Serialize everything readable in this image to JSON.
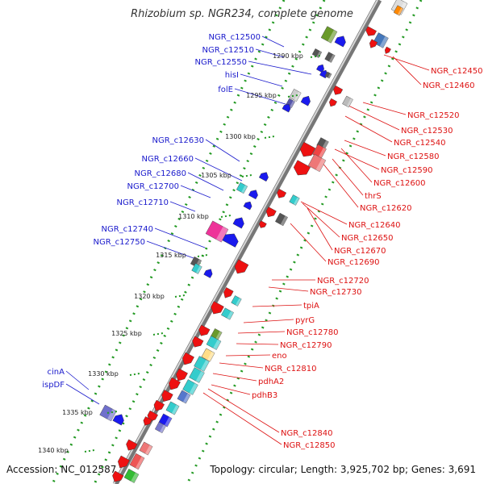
{
  "title": "Rhizobium sp. NGR234, complete genome",
  "accession": "Accession: NC_012587",
  "topology": "Topology: circular; Length: 3,925,702 bp; Genes: 3,691",
  "colors": {
    "label_forward": "#1a1acc",
    "label_reverse": "#dd1111",
    "gene_forward": "#1a1aee",
    "gene_reverse": "#ee1111",
    "axis": "#aaaaaa",
    "tick_dots": "#229922"
  },
  "kbp_ticks": [
    "1290 kbp",
    "1295 kbp",
    "1300 kbp",
    "1305 kbp",
    "1310 kbp",
    "1315 kbp",
    "1320 kbp",
    "1325 kbp",
    "1330 kbp",
    "1335 kbp",
    "1340 kbp"
  ],
  "forward_labels": [
    "NGR_c12500",
    "NGR_c12510",
    "NGR_c12550",
    "hisI",
    "folE",
    "NGR_c12630",
    "NGR_c12660",
    "NGR_c12680",
    "NGR_c12700",
    "NGR_c12710",
    "NGR_c12740",
    "NGR_c12750",
    "cinA",
    "ispDF"
  ],
  "reverse_labels": [
    "NGR_c12450",
    "NGR_c12460",
    "NGR_c12520",
    "NGR_c12530",
    "NGR_c12540",
    "NGR_c12580",
    "NGR_c12590",
    "NGR_c12600",
    "thrS",
    "NGR_c12620",
    "NGR_c12640",
    "NGR_c12650",
    "NGR_c12670",
    "NGR_c12690",
    "NGR_c12720",
    "NGR_c12730",
    "tpiA",
    "pyrG",
    "NGR_c12780",
    "NGR_c12790",
    "eno",
    "NGR_c12810",
    "pdhA2",
    "pdhB3",
    "NGR_c12840",
    "NGR_c12850"
  ]
}
